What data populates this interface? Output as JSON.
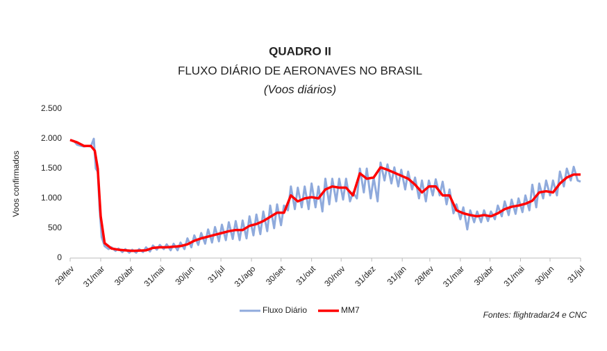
{
  "chart_data": {
    "type": "line",
    "title": "QUADRO II",
    "subtitle": "FLUXO DIÁRIO DE AERONAVES NO BRASIL",
    "subtitle2": "(Voos diários)",
    "y_label": "Voos confirmados",
    "source": "Fontes: flightradar24 e CNC",
    "legend": "bottom",
    "grid": false,
    "xlim": [
      0,
      518
    ],
    "xticks": [
      {
        "value": 0,
        "label": "29/fev"
      },
      {
        "value": 31,
        "label": "31/mar"
      },
      {
        "value": 61,
        "label": "30/abr"
      },
      {
        "value": 92,
        "label": "31/mai"
      },
      {
        "value": 122,
        "label": "30/jun"
      },
      {
        "value": 153,
        "label": "31/jul"
      },
      {
        "value": 184,
        "label": "31/ago"
      },
      {
        "value": 214,
        "label": "30/set"
      },
      {
        "value": 245,
        "label": "31/out"
      },
      {
        "value": 275,
        "label": "30/nov"
      },
      {
        "value": 306,
        "label": "31/dez"
      },
      {
        "value": 337,
        "label": "31/jan"
      },
      {
        "value": 365,
        "label": "28/fev"
      },
      {
        "value": 396,
        "label": "31/mar"
      },
      {
        "value": 426,
        "label": "30/abr"
      },
      {
        "value": 457,
        "label": "31/mai"
      },
      {
        "value": 487,
        "label": "30/jun"
      },
      {
        "value": 518,
        "label": "31/jul"
      }
    ],
    "ylim": [
      0,
      2500
    ],
    "yticks": [
      0,
      500,
      {
        "value": 1000,
        "label": "1.000"
      },
      {
        "value": 1500,
        "label": "1.500"
      },
      {
        "value": 2000,
        "label": "2.000"
      },
      {
        "value": 2500,
        "label": "2.500"
      }
    ],
    "series": [
      {
        "name": "Fluxo Diário",
        "color": "#8faadc",
        "width": 3,
        "x": [
          0,
          4,
          7,
          11,
          14,
          18,
          21,
          24,
          26,
          28,
          30,
          32,
          35,
          39,
          42,
          46,
          49,
          53,
          56,
          60,
          63,
          67,
          70,
          74,
          77,
          81,
          84,
          88,
          91,
          95,
          98,
          102,
          105,
          109,
          112,
          116,
          119,
          123,
          126,
          130,
          133,
          137,
          140,
          144,
          147,
          151,
          154,
          158,
          161,
          165,
          168,
          172,
          175,
          179,
          182,
          186,
          189,
          193,
          196,
          200,
          203,
          207,
          210,
          214,
          217,
          221,
          224,
          228,
          231,
          235,
          238,
          242,
          245,
          249,
          252,
          256,
          259,
          263,
          266,
          270,
          273,
          277,
          280,
          284,
          287,
          291,
          294,
          298,
          301,
          305,
          308,
          312,
          315,
          319,
          322,
          326,
          329,
          333,
          336,
          340,
          343,
          347,
          350,
          354,
          357,
          361,
          364,
          368,
          371,
          375,
          378,
          382,
          385,
          389,
          392,
          396,
          399,
          403,
          406,
          410,
          413,
          417,
          420,
          424,
          427,
          431,
          434,
          438,
          441,
          445,
          448,
          452,
          455,
          459,
          462,
          466,
          469,
          473,
          476,
          480,
          483,
          487,
          490,
          494,
          497,
          501,
          504,
          508,
          511,
          515,
          518
        ],
        "values": [
          1980,
          1960,
          1900,
          1880,
          1870,
          1880,
          1870,
          2000,
          1500,
          1450,
          800,
          350,
          200,
          150,
          180,
          120,
          160,
          100,
          150,
          90,
          140,
          90,
          150,
          100,
          180,
          110,
          210,
          140,
          220,
          150,
          230,
          130,
          240,
          130,
          260,
          150,
          330,
          180,
          380,
          220,
          420,
          240,
          480,
          260,
          520,
          280,
          560,
          300,
          600,
          320,
          620,
          300,
          630,
          330,
          700,
          380,
          730,
          400,
          780,
          450,
          880,
          500,
          900,
          550,
          880,
          800,
          1200,
          820,
          1180,
          850,
          1200,
          820,
          1250,
          850,
          1200,
          780,
          1330,
          900,
          1330,
          950,
          1330,
          980,
          1330,
          950,
          1100,
          1000,
          1500,
          1100,
          1500,
          1000,
          1350,
          950,
          1600,
          1300,
          1570,
          1250,
          1520,
          1200,
          1480,
          1150,
          1450,
          1150,
          1350,
          1000,
          1300,
          950,
          1300,
          1050,
          1320,
          1050,
          1280,
          900,
          1150,
          750,
          900,
          650,
          850,
          480,
          800,
          600,
          780,
          600,
          800,
          620,
          780,
          650,
          880,
          700,
          950,
          720,
          980,
          740,
          1000,
          770,
          1050,
          800,
          1230,
          850,
          1250,
          1000,
          1300,
          1050,
          1300,
          1050,
          1450,
          1200,
          1500,
          1300,
          1530,
          1300,
          1280
        ]
      },
      {
        "name": "MM7",
        "color": "#ff0000",
        "width": 3.5,
        "x": [
          0,
          7,
          14,
          21,
          25,
          28,
          31,
          35,
          42,
          49,
          56,
          63,
          70,
          77,
          84,
          91,
          98,
          105,
          112,
          119,
          126,
          133,
          140,
          147,
          154,
          161,
          168,
          175,
          182,
          189,
          196,
          203,
          210,
          217,
          224,
          231,
          238,
          245,
          252,
          259,
          266,
          273,
          280,
          287,
          294,
          301,
          308,
          315,
          322,
          329,
          336,
          343,
          350,
          357,
          364,
          371,
          378,
          385,
          392,
          399,
          406,
          413,
          420,
          427,
          434,
          441,
          448,
          455,
          462,
          469,
          476,
          483,
          490,
          497,
          504,
          511,
          518
        ],
        "values": [
          1980,
          1940,
          1880,
          1880,
          1800,
          1500,
          700,
          250,
          160,
          140,
          130,
          120,
          125,
          130,
          170,
          180,
          180,
          190,
          200,
          230,
          290,
          330,
          360,
          390,
          420,
          450,
          470,
          470,
          540,
          570,
          620,
          690,
          760,
          760,
          1050,
          950,
          1000,
          1020,
          1000,
          1150,
          1200,
          1180,
          1180,
          1050,
          1420,
          1330,
          1350,
          1520,
          1480,
          1430,
          1380,
          1330,
          1230,
          1100,
          1200,
          1200,
          1050,
          1050,
          800,
          750,
          720,
          700,
          720,
          700,
          750,
          820,
          860,
          880,
          910,
          960,
          1100,
          1120,
          1100,
          1250,
          1350,
          1400,
          1400
        ]
      }
    ]
  }
}
